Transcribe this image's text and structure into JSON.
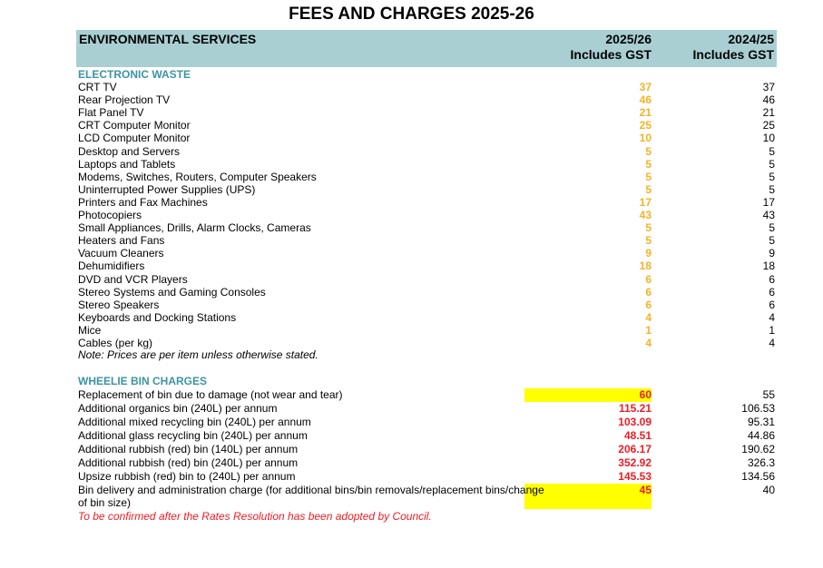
{
  "title": "FEES AND CHARGES 2025-26",
  "header": {
    "section": "ENVIRONMENTAL SERVICES",
    "col1_line1": "2025/26",
    "col1_line2": "Includes GST",
    "col2_line1": "2024/25",
    "col2_line2": "Includes GST"
  },
  "colors": {
    "header_bg": "#a9cfd3",
    "section_heading": "#3d94a3",
    "new_ewaste": "#f5b324",
    "new_bin": "#ee1c24",
    "highlight": "#ffff00"
  },
  "ewaste": {
    "heading": "ELECTRONIC WASTE",
    "rows": [
      {
        "label": "CRT TV",
        "new": "37",
        "old": "37"
      },
      {
        "label": "Rear Projection TV",
        "new": "46",
        "old": "46"
      },
      {
        "label": "Flat Panel TV",
        "new": "21",
        "old": "21"
      },
      {
        "label": "CRT Computer Monitor",
        "new": "25",
        "old": "25"
      },
      {
        "label": "LCD Computer Monitor",
        "new": "10",
        "old": "10"
      },
      {
        "label": "Desktop and Servers",
        "new": "5",
        "old": "5"
      },
      {
        "label": "Laptops and Tablets",
        "new": "5",
        "old": "5"
      },
      {
        "label": "Modems, Switches, Routers, Computer Speakers",
        "new": "5",
        "old": "5"
      },
      {
        "label": "Uninterrupted Power Supplies (UPS)",
        "new": "5",
        "old": "5"
      },
      {
        "label": "Printers and Fax Machines",
        "new": "17",
        "old": "17"
      },
      {
        "label": "Photocopiers",
        "new": "43",
        "old": "43"
      },
      {
        "label": "Small Appliances, Drills, Alarm Clocks, Cameras",
        "new": "5",
        "old": "5"
      },
      {
        "label": "Heaters and Fans",
        "new": "5",
        "old": "5"
      },
      {
        "label": "Vacuum Cleaners",
        "new": "9",
        "old": "9"
      },
      {
        "label": "Dehumidifiers",
        "new": "18",
        "old": "18"
      },
      {
        "label": "DVD and VCR Players",
        "new": "6",
        "old": "6"
      },
      {
        "label": "Stereo Systems and Gaming Consoles",
        "new": "6",
        "old": "6"
      },
      {
        "label": "Stereo Speakers",
        "new": "6",
        "old": "6"
      },
      {
        "label": "Keyboards and Docking Stations",
        "new": "4",
        "old": "4"
      },
      {
        "label": "Mice",
        "new": "1",
        "old": "1"
      },
      {
        "label": "Cables (per kg)",
        "new": "4",
        "old": "4"
      }
    ],
    "note": "Note: Prices are per item unless otherwise stated."
  },
  "wheelie": {
    "heading": "WHEELIE BIN CHARGES",
    "rows": [
      {
        "label": "Replacement of bin due to damage (not wear and tear)",
        "new": "60",
        "old": "55",
        "highlight": true
      },
      {
        "label": "Additional organics bin (240L) per annum",
        "new": "115.21",
        "old": "106.53"
      },
      {
        "label": "Additional mixed recycling bin (240L) per annum",
        "new": "103.09",
        "old": "95.31"
      },
      {
        "label": "Additional glass recycling bin (240L) per annum",
        "new": "48.51",
        "old": "44.86"
      },
      {
        "label": "Additional rubbish (red) bin (140L) per annum",
        "new": "206.17",
        "old": "190.62"
      },
      {
        "label": "Additional rubbish (red) bin (240L) per annum",
        "new": "352.92",
        "old": "326.3"
      },
      {
        "label": "Upsize rubbish (red) bin to (240L) per annum",
        "new": "145.53",
        "old": "134.56"
      }
    ],
    "last_row": {
      "label_line1": "Bin delivery and administration charge (for additional bins/bin removals/replacement bins/change",
      "label_line2": "of bin size)",
      "new": "45",
      "old": "40"
    },
    "note": "To be confirmed after the Rates Resolution has been adopted by Council."
  }
}
